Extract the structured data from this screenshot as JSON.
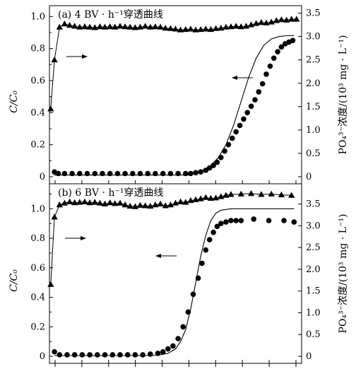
{
  "chart_data": [
    {
      "id": "panel-a",
      "type": "line",
      "title": "(a) 4 BV · h⁻¹穿透曲线",
      "ylabel": "C/C₀",
      "ylabel_right": "PO₄³⁻浓度/(10³ mg · L⁻¹)",
      "ylim": [
        0,
        1.05
      ],
      "yticks": [
        "0",
        "0.2",
        "0.4",
        "0.6",
        "0.8",
        "1.0"
      ],
      "ylim_right": [
        0,
        3.6
      ],
      "yticks_right": [
        "0",
        "0.5",
        "1.0",
        "1.5",
        "2.0",
        "2.5",
        "3.0",
        "3.5"
      ],
      "xlim": [
        0,
        1
      ],
      "series": [
        {
          "role": "scatter-circle",
          "axis": "left",
          "x": [
            0.02,
            0.035,
            0.06,
            0.09,
            0.12,
            0.15,
            0.18,
            0.21,
            0.24,
            0.27,
            0.3,
            0.33,
            0.36,
            0.39,
            0.42,
            0.45,
            0.48,
            0.51,
            0.54,
            0.56,
            0.58,
            0.6,
            0.62,
            0.635,
            0.65,
            0.665,
            0.68,
            0.695,
            0.71,
            0.725,
            0.74,
            0.755,
            0.77,
            0.785,
            0.8,
            0.815,
            0.83,
            0.845,
            0.86,
            0.875,
            0.89,
            0.905,
            0.92,
            0.935,
            0.95,
            0.965
          ],
          "y": [
            0.03,
            0.02,
            0.02,
            0.02,
            0.02,
            0.02,
            0.02,
            0.02,
            0.02,
            0.02,
            0.02,
            0.02,
            0.02,
            0.02,
            0.02,
            0.02,
            0.02,
            0.02,
            0.02,
            0.02,
            0.025,
            0.03,
            0.04,
            0.055,
            0.07,
            0.09,
            0.12,
            0.16,
            0.2,
            0.24,
            0.28,
            0.32,
            0.36,
            0.4,
            0.44,
            0.48,
            0.53,
            0.58,
            0.64,
            0.69,
            0.74,
            0.78,
            0.81,
            0.83,
            0.84,
            0.85
          ]
        },
        {
          "role": "model-curve",
          "axis": "left",
          "x": [
            0.02,
            0.55,
            0.58,
            0.61,
            0.64,
            0.67,
            0.7,
            0.73,
            0.76,
            0.79,
            0.82,
            0.85,
            0.88,
            0.91,
            0.94,
            0.97
          ],
          "y": [
            0.01,
            0.01,
            0.02,
            0.04,
            0.07,
            0.12,
            0.2,
            0.32,
            0.47,
            0.62,
            0.74,
            0.82,
            0.86,
            0.875,
            0.88,
            0.88
          ]
        },
        {
          "role": "triangle-line",
          "axis": "right",
          "x": [
            0.005,
            0.02,
            0.04,
            0.06,
            0.08,
            0.1,
            0.12,
            0.14,
            0.16,
            0.18,
            0.2,
            0.22,
            0.24,
            0.26,
            0.28,
            0.3,
            0.32,
            0.34,
            0.36,
            0.38,
            0.4,
            0.42,
            0.44,
            0.46,
            0.48,
            0.5,
            0.52,
            0.54,
            0.56,
            0.58,
            0.6,
            0.62,
            0.64,
            0.66,
            0.68,
            0.7,
            0.72,
            0.74,
            0.76,
            0.78,
            0.8,
            0.82,
            0.84,
            0.86,
            0.88,
            0.9,
            0.92,
            0.94,
            0.96,
            0.98
          ],
          "y": [
            1.45,
            2.5,
            3.2,
            3.27,
            3.24,
            3.22,
            3.2,
            3.21,
            3.2,
            3.19,
            3.21,
            3.2,
            3.21,
            3.2,
            3.22,
            3.21,
            3.2,
            3.19,
            3.2,
            3.22,
            3.2,
            3.21,
            3.2,
            3.18,
            3.17,
            3.16,
            3.14,
            3.15,
            3.16,
            3.14,
            3.15,
            3.16,
            3.15,
            3.17,
            3.18,
            3.2,
            3.21,
            3.22,
            3.21,
            3.22,
            3.25,
            3.28,
            3.3,
            3.29,
            3.31,
            3.34,
            3.36,
            3.35,
            3.37,
            3.37
          ]
        }
      ]
    },
    {
      "id": "panel-b",
      "type": "line",
      "title": "(b) 6 BV · h⁻¹穿透曲线",
      "ylabel": "C/C₀",
      "ylabel_right": "PO₄³⁻浓度/(10³ mg · L⁻¹)",
      "ylim": [
        0,
        1.15
      ],
      "yticks": [
        "0",
        "0.2",
        "0.4",
        "0.6",
        "0.8",
        "1.0"
      ],
      "ylim_right": [
        0,
        3.9
      ],
      "yticks_right": [
        "0",
        "0.5",
        "1.0",
        "1.5",
        "2.0",
        "2.5",
        "3.0",
        "3.5"
      ],
      "xlim": [
        0,
        1
      ],
      "series": [
        {
          "role": "scatter-circle",
          "axis": "left",
          "x": [
            0.02,
            0.04,
            0.07,
            0.1,
            0.13,
            0.16,
            0.19,
            0.22,
            0.25,
            0.28,
            0.31,
            0.34,
            0.37,
            0.4,
            0.43,
            0.45,
            0.47,
            0.49,
            0.51,
            0.53,
            0.55,
            0.57,
            0.59,
            0.605,
            0.62,
            0.635,
            0.65,
            0.665,
            0.68,
            0.7,
            0.72,
            0.74,
            0.76,
            0.81,
            0.87,
            0.93,
            0.97
          ],
          "y": [
            0.03,
            0.01,
            0.01,
            0.01,
            0.01,
            0.01,
            0.01,
            0.01,
            0.01,
            0.01,
            0.01,
            0.01,
            0.01,
            0.015,
            0.02,
            0.03,
            0.05,
            0.07,
            0.12,
            0.2,
            0.3,
            0.42,
            0.53,
            0.63,
            0.72,
            0.79,
            0.84,
            0.88,
            0.9,
            0.91,
            0.92,
            0.92,
            0.92,
            0.93,
            0.92,
            0.92,
            0.91
          ]
        },
        {
          "role": "model-curve",
          "axis": "left",
          "x": [
            0.02,
            0.4,
            0.44,
            0.47,
            0.5,
            0.52,
            0.54,
            0.56,
            0.58,
            0.6,
            0.62,
            0.64,
            0.66,
            0.68,
            0.72,
            0.8,
            0.97
          ],
          "y": [
            0.005,
            0.005,
            0.01,
            0.02,
            0.05,
            0.1,
            0.18,
            0.32,
            0.5,
            0.68,
            0.82,
            0.92,
            0.97,
            0.99,
            1.0,
            1.0,
            1.0
          ]
        },
        {
          "role": "triangle-line",
          "axis": "right",
          "x": [
            0.005,
            0.02,
            0.04,
            0.06,
            0.08,
            0.1,
            0.12,
            0.14,
            0.16,
            0.18,
            0.2,
            0.22,
            0.24,
            0.26,
            0.28,
            0.3,
            0.32,
            0.34,
            0.36,
            0.38,
            0.4,
            0.42,
            0.44,
            0.46,
            0.48,
            0.5,
            0.52,
            0.54,
            0.56,
            0.58,
            0.6,
            0.62,
            0.64,
            0.66,
            0.68,
            0.7,
            0.72,
            0.76,
            0.8,
            0.84,
            0.88,
            0.92,
            0.96
          ],
          "y": [
            1.65,
            3.2,
            3.48,
            3.52,
            3.55,
            3.53,
            3.54,
            3.55,
            3.53,
            3.54,
            3.52,
            3.5,
            3.53,
            3.51,
            3.52,
            3.48,
            3.45,
            3.44,
            3.47,
            3.46,
            3.45,
            3.48,
            3.5,
            3.46,
            3.48,
            3.52,
            3.55,
            3.54,
            3.58,
            3.6,
            3.62,
            3.65,
            3.63,
            3.64,
            3.67,
            3.7,
            3.72,
            3.73,
            3.74,
            3.72,
            3.73,
            3.71,
            3.7
          ]
        }
      ]
    }
  ]
}
